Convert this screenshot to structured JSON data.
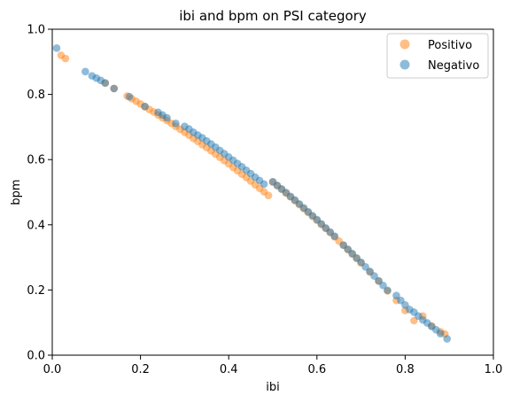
{
  "chart_data": {
    "type": "scatter",
    "title": "ibi and bpm on PSI category",
    "xlabel": "ibi",
    "ylabel": "bpm",
    "xlim": [
      0.0,
      1.0
    ],
    "ylim": [
      0.0,
      1.0
    ],
    "xticks": [
      "0.0",
      "0.2",
      "0.4",
      "0.6",
      "0.8",
      "1.0"
    ],
    "yticks": [
      "0.0",
      "0.2",
      "0.4",
      "0.6",
      "0.8",
      "1.0"
    ],
    "grid": false,
    "legend_position": "top-right",
    "series": [
      {
        "name": "Positivo",
        "color": "#ff7f0e",
        "alpha": 0.5,
        "x": [
          0.02,
          0.03,
          0.12,
          0.14,
          0.17,
          0.18,
          0.19,
          0.2,
          0.21,
          0.22,
          0.23,
          0.24,
          0.25,
          0.26,
          0.27,
          0.28,
          0.29,
          0.3,
          0.31,
          0.32,
          0.33,
          0.34,
          0.35,
          0.36,
          0.37,
          0.38,
          0.39,
          0.4,
          0.41,
          0.42,
          0.43,
          0.44,
          0.45,
          0.46,
          0.47,
          0.48,
          0.49,
          0.5,
          0.51,
          0.52,
          0.53,
          0.54,
          0.55,
          0.56,
          0.57,
          0.58,
          0.59,
          0.6,
          0.61,
          0.62,
          0.63,
          0.64,
          0.65,
          0.66,
          0.67,
          0.68,
          0.69,
          0.7,
          0.72,
          0.74,
          0.76,
          0.78,
          0.8,
          0.82,
          0.84,
          0.86,
          0.88,
          0.89
        ],
        "y": [
          0.92,
          0.91,
          0.835,
          0.818,
          0.795,
          0.787,
          0.779,
          0.771,
          0.762,
          0.754,
          0.746,
          0.737,
          0.728,
          0.72,
          0.711,
          0.702,
          0.693,
          0.684,
          0.675,
          0.665,
          0.656,
          0.646,
          0.637,
          0.627,
          0.617,
          0.607,
          0.597,
          0.587,
          0.576,
          0.566,
          0.555,
          0.545,
          0.534,
          0.523,
          0.512,
          0.501,
          0.49,
          0.531,
          0.52,
          0.509,
          0.497,
          0.486,
          0.474,
          0.462,
          0.45,
          0.438,
          0.426,
          0.414,
          0.401,
          0.389,
          0.376,
          0.363,
          0.35,
          0.337,
          0.324,
          0.31,
          0.297,
          0.283,
          0.255,
          0.227,
          0.197,
          0.168,
          0.137,
          0.106,
          0.12,
          0.09,
          0.072,
          0.065
        ]
      },
      {
        "name": "Negativo",
        "color": "#1f77b4",
        "alpha": 0.5,
        "x": [
          0.01,
          0.075,
          0.09,
          0.1,
          0.11,
          0.12,
          0.14,
          0.175,
          0.21,
          0.24,
          0.25,
          0.26,
          0.28,
          0.3,
          0.31,
          0.32,
          0.33,
          0.34,
          0.35,
          0.36,
          0.37,
          0.38,
          0.39,
          0.4,
          0.41,
          0.42,
          0.43,
          0.44,
          0.45,
          0.46,
          0.47,
          0.48,
          0.5,
          0.51,
          0.52,
          0.53,
          0.54,
          0.55,
          0.56,
          0.57,
          0.58,
          0.59,
          0.6,
          0.61,
          0.62,
          0.63,
          0.64,
          0.66,
          0.67,
          0.68,
          0.69,
          0.7,
          0.71,
          0.72,
          0.73,
          0.74,
          0.75,
          0.76,
          0.78,
          0.79,
          0.8,
          0.81,
          0.82,
          0.83,
          0.84,
          0.85,
          0.86,
          0.87,
          0.88,
          0.895
        ],
        "y": [
          0.942,
          0.87,
          0.857,
          0.85,
          0.843,
          0.835,
          0.818,
          0.793,
          0.763,
          0.745,
          0.737,
          0.728,
          0.711,
          0.702,
          0.694,
          0.684,
          0.675,
          0.667,
          0.657,
          0.648,
          0.638,
          0.628,
          0.618,
          0.608,
          0.598,
          0.588,
          0.578,
          0.567,
          0.557,
          0.546,
          0.536,
          0.525,
          0.532,
          0.521,
          0.51,
          0.499,
          0.487,
          0.476,
          0.464,
          0.452,
          0.44,
          0.428,
          0.416,
          0.403,
          0.39,
          0.378,
          0.365,
          0.338,
          0.325,
          0.312,
          0.298,
          0.285,
          0.271,
          0.257,
          0.243,
          0.228,
          0.214,
          0.199,
          0.183,
          0.168,
          0.154,
          0.14,
          0.132,
          0.12,
          0.108,
          0.099,
          0.088,
          0.078,
          0.066,
          0.05
        ]
      }
    ]
  }
}
